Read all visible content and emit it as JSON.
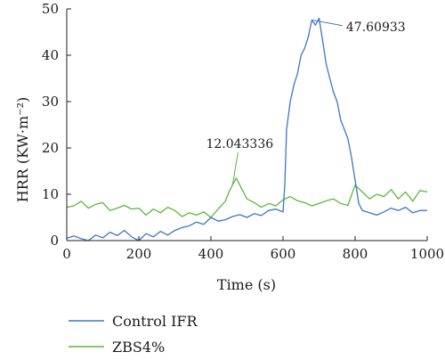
{
  "chart_data": {
    "type": "line",
    "xlabel": "Time (s)",
    "ylabel": "HRR (KW·m⁻²)",
    "xlim": [
      0,
      1000
    ],
    "ylim": [
      0,
      50
    ],
    "xticks": [
      0,
      200,
      400,
      600,
      800,
      1000
    ],
    "yticks": [
      0,
      10,
      20,
      30,
      40,
      50
    ],
    "grid": false,
    "legend_position": "bottom-left",
    "series": [
      {
        "name": "Control IFR",
        "color": "#3a78c2",
        "x": [
          0,
          20,
          40,
          60,
          80,
          100,
          120,
          140,
          160,
          180,
          200,
          220,
          240,
          260,
          280,
          300,
          320,
          340,
          360,
          380,
          400,
          420,
          440,
          460,
          480,
          500,
          520,
          540,
          560,
          580,
          600,
          605,
          610,
          620,
          630,
          640,
          650,
          660,
          670,
          680,
          690,
          700,
          710,
          720,
          730,
          740,
          750,
          760,
          770,
          780,
          790,
          800,
          810,
          820,
          840,
          860,
          880,
          900,
          920,
          940,
          960,
          980,
          1000
        ],
        "y": [
          0.5,
          1.0,
          0.4,
          0,
          1.2,
          0.6,
          1.8,
          1.1,
          2.2,
          0.8,
          0,
          1.5,
          0.8,
          2.0,
          1.2,
          2.2,
          2.8,
          3.2,
          4.0,
          3.5,
          5.0,
          4.2,
          4.5,
          5.2,
          5.6,
          5.0,
          5.8,
          5.4,
          6.5,
          6.8,
          6.2,
          12.0,
          24.0,
          30.0,
          33.5,
          36.0,
          40.0,
          41.5,
          44.0,
          47.60933,
          46.5,
          48.0,
          43.0,
          38.0,
          35.0,
          32.0,
          30.0,
          26.0,
          24.0,
          22.0,
          18.0,
          13.0,
          8.0,
          6.5,
          6.0,
          5.5,
          6.2,
          7.0,
          6.5,
          7.2,
          6.0,
          6.5,
          6.5
        ]
      },
      {
        "name": "ZBS4%",
        "color": "#5cb83c",
        "x": [
          0,
          20,
          40,
          60,
          80,
          100,
          120,
          140,
          160,
          180,
          200,
          220,
          240,
          260,
          280,
          300,
          320,
          340,
          360,
          380,
          400,
          420,
          440,
          450,
          460,
          470,
          480,
          490,
          500,
          520,
          540,
          560,
          580,
          600,
          620,
          640,
          660,
          680,
          700,
          720,
          740,
          760,
          780,
          800,
          820,
          840,
          860,
          880,
          900,
          920,
          940,
          960,
          980,
          1000
        ],
        "y": [
          7.2,
          7.5,
          8.5,
          7.0,
          7.8,
          8.2,
          6.5,
          7.0,
          7.6,
          6.8,
          7.0,
          5.5,
          6.8,
          6.0,
          7.2,
          6.5,
          5.2,
          6.0,
          5.5,
          6.2,
          5.0,
          6.8,
          8.5,
          10.5,
          12.043336,
          13.5,
          12.0,
          10.5,
          9.0,
          8.2,
          7.2,
          8.0,
          7.5,
          8.8,
          9.5,
          8.6,
          8.2,
          7.5,
          8.0,
          8.6,
          9.0,
          8.0,
          7.6,
          12.0,
          10.5,
          9.0,
          10.0,
          9.5,
          11.0,
          9.0,
          10.5,
          8.5,
          10.8,
          10.5
        ]
      }
    ],
    "annotations": [
      {
        "text": "47.60933",
        "x": 680,
        "y": 47.60933,
        "label_at": [
          775,
          46
        ]
      },
      {
        "text": "12.043336",
        "x": 460,
        "y": 12.043336,
        "label_at": [
          490,
          20
        ]
      }
    ]
  }
}
